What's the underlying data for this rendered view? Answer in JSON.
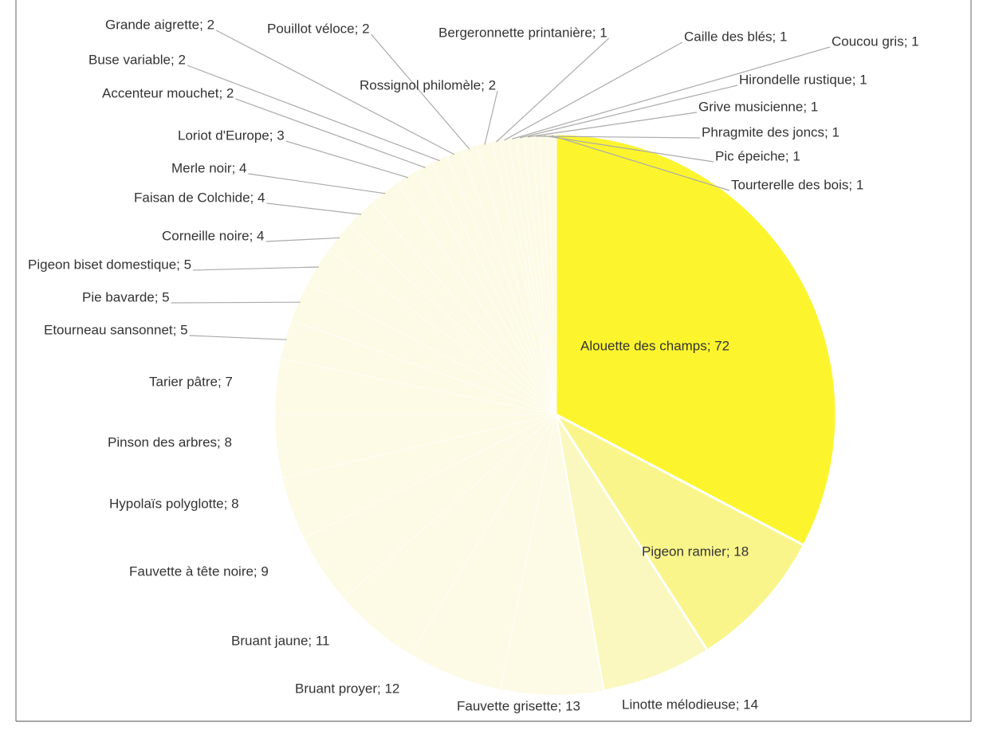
{
  "chart_data": {
    "type": "pie",
    "values": [
      72,
      18,
      14,
      13,
      12,
      11,
      9,
      8,
      8,
      7,
      5,
      5,
      5,
      4,
      4,
      4,
      3,
      2,
      2,
      2,
      2,
      2,
      1,
      1,
      1,
      1,
      1,
      1,
      1,
      1
    ],
    "value_labels": [
      "Alouette des champs; 72",
      "Pigeon ramier; 18",
      "Linotte mélodieuse; 14",
      "Fauvette grisette; 13",
      "Bruant proyer; 12",
      "Bruant jaune; 11",
      "Fauvette à tête noire; 9",
      "Hypolaïs polyglotte; 8",
      "Pinson des arbres; 8",
      "Tarier pâtre; 7",
      "Etourneau sansonnet; 5",
      "Pie bavarde; 5",
      "Pigeon biset domestique; 5",
      "Corneille noire; 4",
      "Faisan de Colchide; 4",
      "Merle noir; 4",
      "Loriot d'Europe; 3",
      "Accenteur mouchet; 2",
      "Buse variable; 2",
      "Grande aigrette; 2",
      "Pouillot véloce; 2",
      "Rossignol philomèle; 2",
      "Bergeronnette printanière; 1",
      "Caille des blés; 1",
      "Coucou gris; 1",
      "Hirondelle rustique; 1",
      "Grive musicienne; 1",
      "Phragmite des joncs; 1",
      "Pic épeiche; 1",
      "Tourterelle des bois; 1"
    ],
    "colors": [
      "#fcf52e",
      "#faf58a",
      "#fbf8bf",
      "#fdfbe6",
      "#fdfbe6",
      "#fdfbe6",
      "#fdfbe6",
      "#fdfbe6",
      "#fdfbe6",
      "#fdfbe6",
      "#fdfbe6",
      "#fdfbe6",
      "#fdfbe6",
      "#fdfbe6",
      "#fdfbe6",
      "#fdfbe6",
      "#fdfbe6",
      "#fdfbe6",
      "#fdfbe6",
      "#fdfbe6",
      "#fdfbe6",
      "#fdfbe6",
      "#fdfbe6",
      "#fdfbe6",
      "#fdfbe6",
      "#fdfbe6",
      "#fdfbe6",
      "#fdfbe6",
      "#fdfbe6",
      "#fdfbe6"
    ]
  }
}
